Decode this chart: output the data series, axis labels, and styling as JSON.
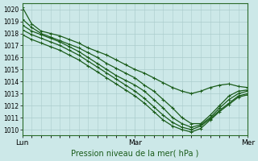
{
  "title": "",
  "xlabel": "Pression niveau de la mer( hPa )",
  "ylabel": "",
  "background_color": "#cce8e8",
  "grid_color": "#aacccc",
  "line_color": "#1a5c1a",
  "xlim": [
    0,
    48
  ],
  "ylim": [
    1009.5,
    1020.5
  ],
  "yticks": [
    1010,
    1011,
    1012,
    1013,
    1014,
    1015,
    1016,
    1017,
    1018,
    1019,
    1020
  ],
  "xtick_positions": [
    0,
    24,
    48
  ],
  "xtick_labels": [
    "Lun",
    "Mar",
    "Mer"
  ],
  "series": [
    [
      1020.2,
      1018.8,
      1018.2,
      1018.0,
      1017.8,
      1017.5,
      1017.2,
      1016.8,
      1016.5,
      1016.2,
      1015.8,
      1015.4,
      1015.0,
      1014.7,
      1014.3,
      1013.9,
      1013.5,
      1013.2,
      1013.0,
      1013.2,
      1013.5,
      1013.7,
      1013.8,
      1013.6,
      1013.5
    ],
    [
      1019.2,
      1018.5,
      1018.0,
      1017.7,
      1017.4,
      1017.1,
      1016.8,
      1016.4,
      1016.0,
      1015.5,
      1015.1,
      1014.7,
      1014.3,
      1013.7,
      1013.2,
      1012.5,
      1011.8,
      1011.0,
      1010.5,
      1010.5,
      1011.2,
      1012.0,
      1012.8,
      1013.2,
      1013.3
    ],
    [
      1018.7,
      1018.2,
      1017.9,
      1017.6,
      1017.3,
      1016.9,
      1016.5,
      1016.0,
      1015.5,
      1015.0,
      1014.5,
      1014.1,
      1013.7,
      1013.2,
      1012.5,
      1011.8,
      1011.0,
      1010.5,
      1010.2,
      1010.4,
      1011.0,
      1011.8,
      1012.5,
      1013.0,
      1013.2
    ],
    [
      1018.3,
      1017.9,
      1017.6,
      1017.3,
      1017.0,
      1016.6,
      1016.2,
      1015.7,
      1015.2,
      1014.7,
      1014.2,
      1013.7,
      1013.2,
      1012.6,
      1011.9,
      1011.2,
      1010.6,
      1010.2,
      1010.0,
      1010.3,
      1010.9,
      1011.6,
      1012.2,
      1012.8,
      1013.0
    ],
    [
      1017.9,
      1017.5,
      1017.2,
      1016.9,
      1016.6,
      1016.2,
      1015.8,
      1015.3,
      1014.8,
      1014.3,
      1013.8,
      1013.3,
      1012.8,
      1012.2,
      1011.5,
      1010.8,
      1010.3,
      1010.0,
      1009.8,
      1010.1,
      1010.8,
      1011.5,
      1012.1,
      1012.7,
      1012.9
    ]
  ],
  "marker": "+",
  "markersize": 3,
  "linewidth": 0.9
}
